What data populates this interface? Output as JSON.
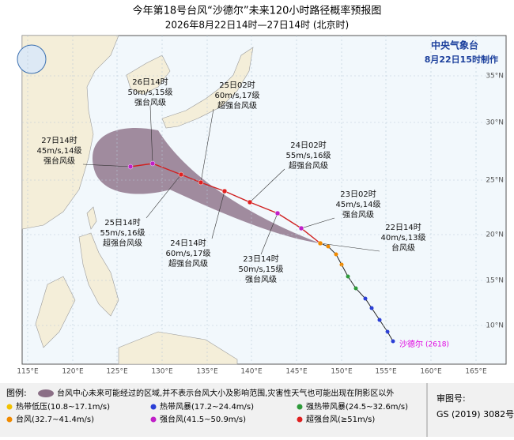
{
  "header": {
    "title": "今年第18号台风“沙德尔”未来120小时路径概率预报图",
    "subtitle": "2026年8月22日14时—27日14时 (北京时)"
  },
  "agency": {
    "name": "中央气象台",
    "issued": "8月22日15时制作"
  },
  "map": {
    "longitude_labels": [
      "115°E",
      "120°E",
      "125°E",
      "130°E",
      "135°E",
      "140°E",
      "145°E",
      "150°E",
      "155°E",
      "160°E",
      "165°E"
    ],
    "latitude_labels": [
      "35°N",
      "30°N",
      "25°N",
      "20°N",
      "15°N",
      "10°N"
    ]
  },
  "storm": {
    "name": "沙德尔",
    "code": "(2618)"
  },
  "forecast_points": [
    {
      "time": "22日14时",
      "wind": "40m/s,13级",
      "category": "台风级"
    },
    {
      "time": "23日02时",
      "wind": "45m/s,14级",
      "category": "强台风级"
    },
    {
      "time": "23日14时",
      "wind": "50m/s,15级",
      "category": "强台风级"
    },
    {
      "time": "24日02时",
      "wind": "55m/s,16级",
      "category": "超强台风级"
    },
    {
      "time": "24日14时",
      "wind": "60m/s,17级",
      "category": "超强台风级"
    },
    {
      "time": "25日02时",
      "wind": "60m/s,17级",
      "category": "超强台风级"
    },
    {
      "time": "25日14时",
      "wind": "55m/s,16级",
      "category": "超强台风级"
    },
    {
      "time": "26日14时",
      "wind": "50m/s,15级",
      "category": "强台风级"
    },
    {
      "time": "27日14时",
      "wind": "45m/s,14级",
      "category": "强台风级"
    }
  ],
  "legend": {
    "title": "图例:",
    "cone": "台风中心未来可能经过的区域,并不表示台风大小及影响范围,灾害性天气也可能出现在阴影区以外",
    "categories": [
      {
        "label": "热带低压(10.8~17.1m/s)",
        "color": "#f2c200"
      },
      {
        "label": "热带风暴(17.2~24.4m/s)",
        "color": "#2b3fd6"
      },
      {
        "label": "强热带风暴(24.5~32.6m/s)",
        "color": "#2e9a3a"
      },
      {
        "label": "台风(32.7~41.4m/s)",
        "color": "#f08a00"
      },
      {
        "label": "强台风(41.5~50.9m/s)",
        "color": "#c020c8"
      },
      {
        "label": "超强台风(≥51m/s)",
        "color": "#e02020"
      }
    ]
  },
  "approval": {
    "label": "审图号:",
    "number": "GS (2019) 3082号"
  }
}
